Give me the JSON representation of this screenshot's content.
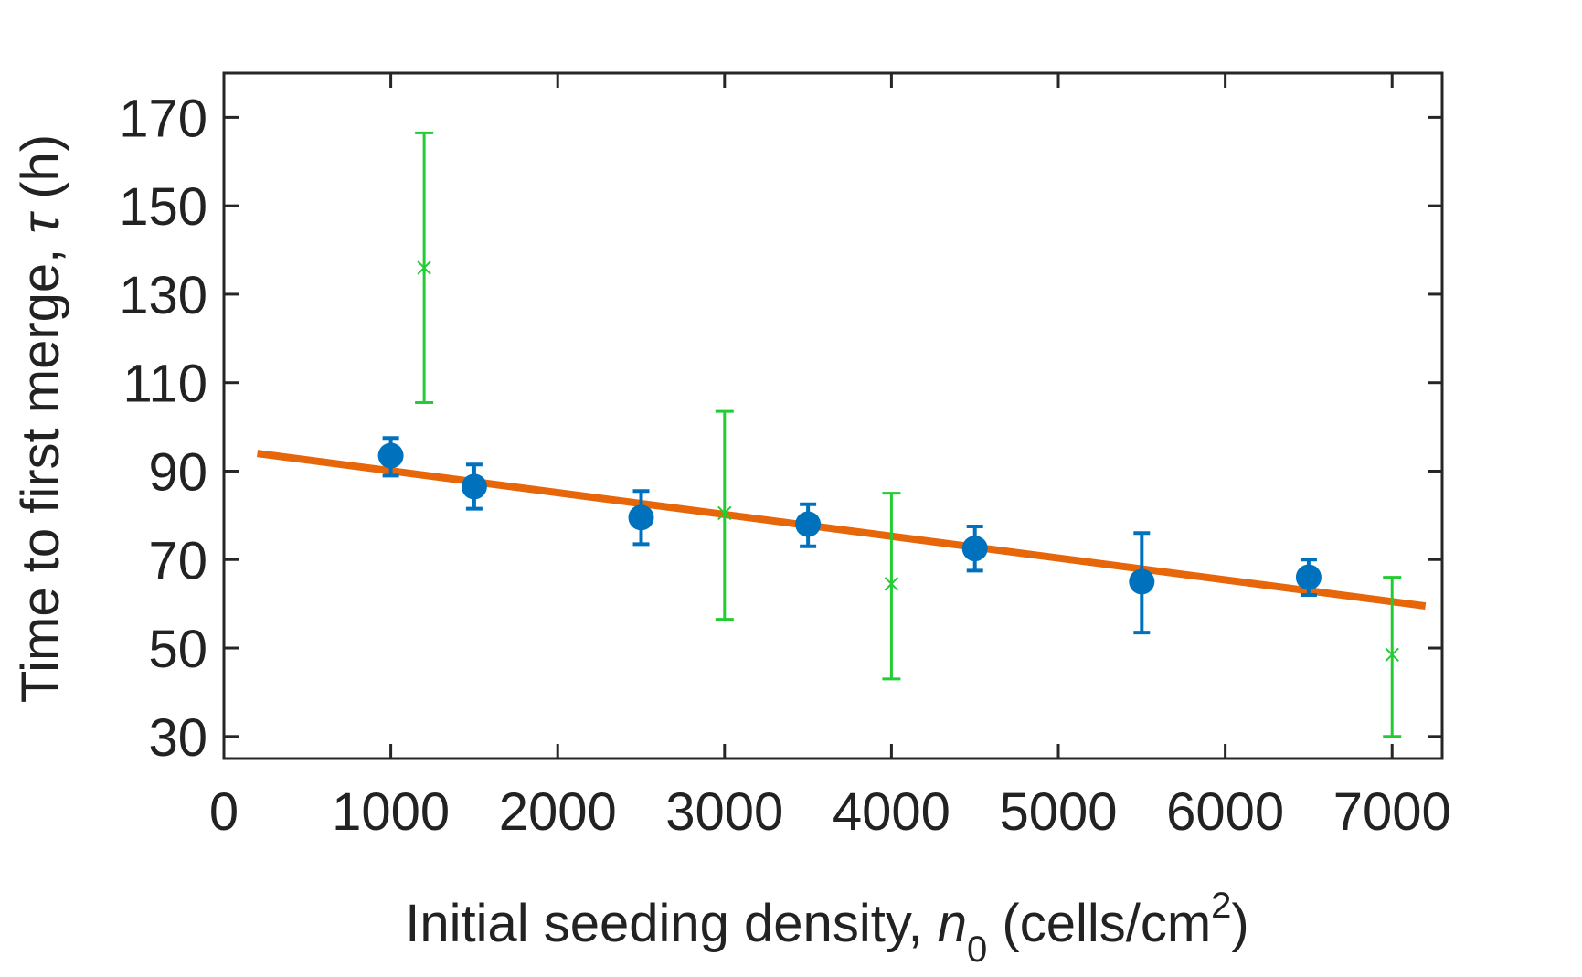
{
  "chart_data": {
    "type": "scatter",
    "xlabel": {
      "text": "Initial seeding density, ",
      "var": "n",
      "sub": "0",
      "unit_open": " (cells/cm",
      "sup": "2",
      "unit_close": ")"
    },
    "ylabel": {
      "text": "Time to first merge, ",
      "var": "τ",
      "unit": " (h)"
    },
    "xlim": [
      0,
      7300
    ],
    "ylim": [
      25,
      180
    ],
    "xticks": [
      0,
      1000,
      2000,
      3000,
      4000,
      5000,
      6000,
      7000
    ],
    "xtick_labels": [
      "0",
      "1000",
      "2000",
      "3000",
      "4000",
      "5000",
      "6000",
      "7000"
    ],
    "yticks": [
      30,
      50,
      70,
      90,
      110,
      130,
      150,
      170
    ],
    "ytick_labels": [
      "30",
      "50",
      "70",
      "90",
      "110",
      "130",
      "150",
      "170"
    ],
    "grid": false,
    "series": [
      {
        "marker": "circle",
        "color": "#0072BD",
        "points": [
          {
            "x": 1000,
            "y": 93.5,
            "lo": 89,
            "hi": 97.5
          },
          {
            "x": 1500,
            "y": 86.5,
            "lo": 81.5,
            "hi": 91.5
          },
          {
            "x": 2500,
            "y": 79.5,
            "lo": 73.5,
            "hi": 85.5
          },
          {
            "x": 3500,
            "y": 78,
            "lo": 73,
            "hi": 82.5
          },
          {
            "x": 4500,
            "y": 72.5,
            "lo": 67.5,
            "hi": 77.5
          },
          {
            "x": 5500,
            "y": 65,
            "lo": 53.5,
            "hi": 76
          },
          {
            "x": 6500,
            "y": 66,
            "lo": 62,
            "hi": 70
          }
        ]
      },
      {
        "marker": "x",
        "color": "#22CC33",
        "points": [
          {
            "x": 1200,
            "y": 136,
            "lo": 105.5,
            "hi": 166.5
          },
          {
            "x": 3000,
            "y": 80.5,
            "lo": 56.5,
            "hi": 103.5
          },
          {
            "x": 4000,
            "y": 64.5,
            "lo": 43,
            "hi": 85
          },
          {
            "x": 7000,
            "y": 48.5,
            "lo": 30,
            "hi": 66
          }
        ]
      }
    ],
    "fit_line": {
      "color": "#E8660A",
      "x": [
        200,
        7200
      ],
      "y": [
        94,
        59.5
      ]
    }
  }
}
